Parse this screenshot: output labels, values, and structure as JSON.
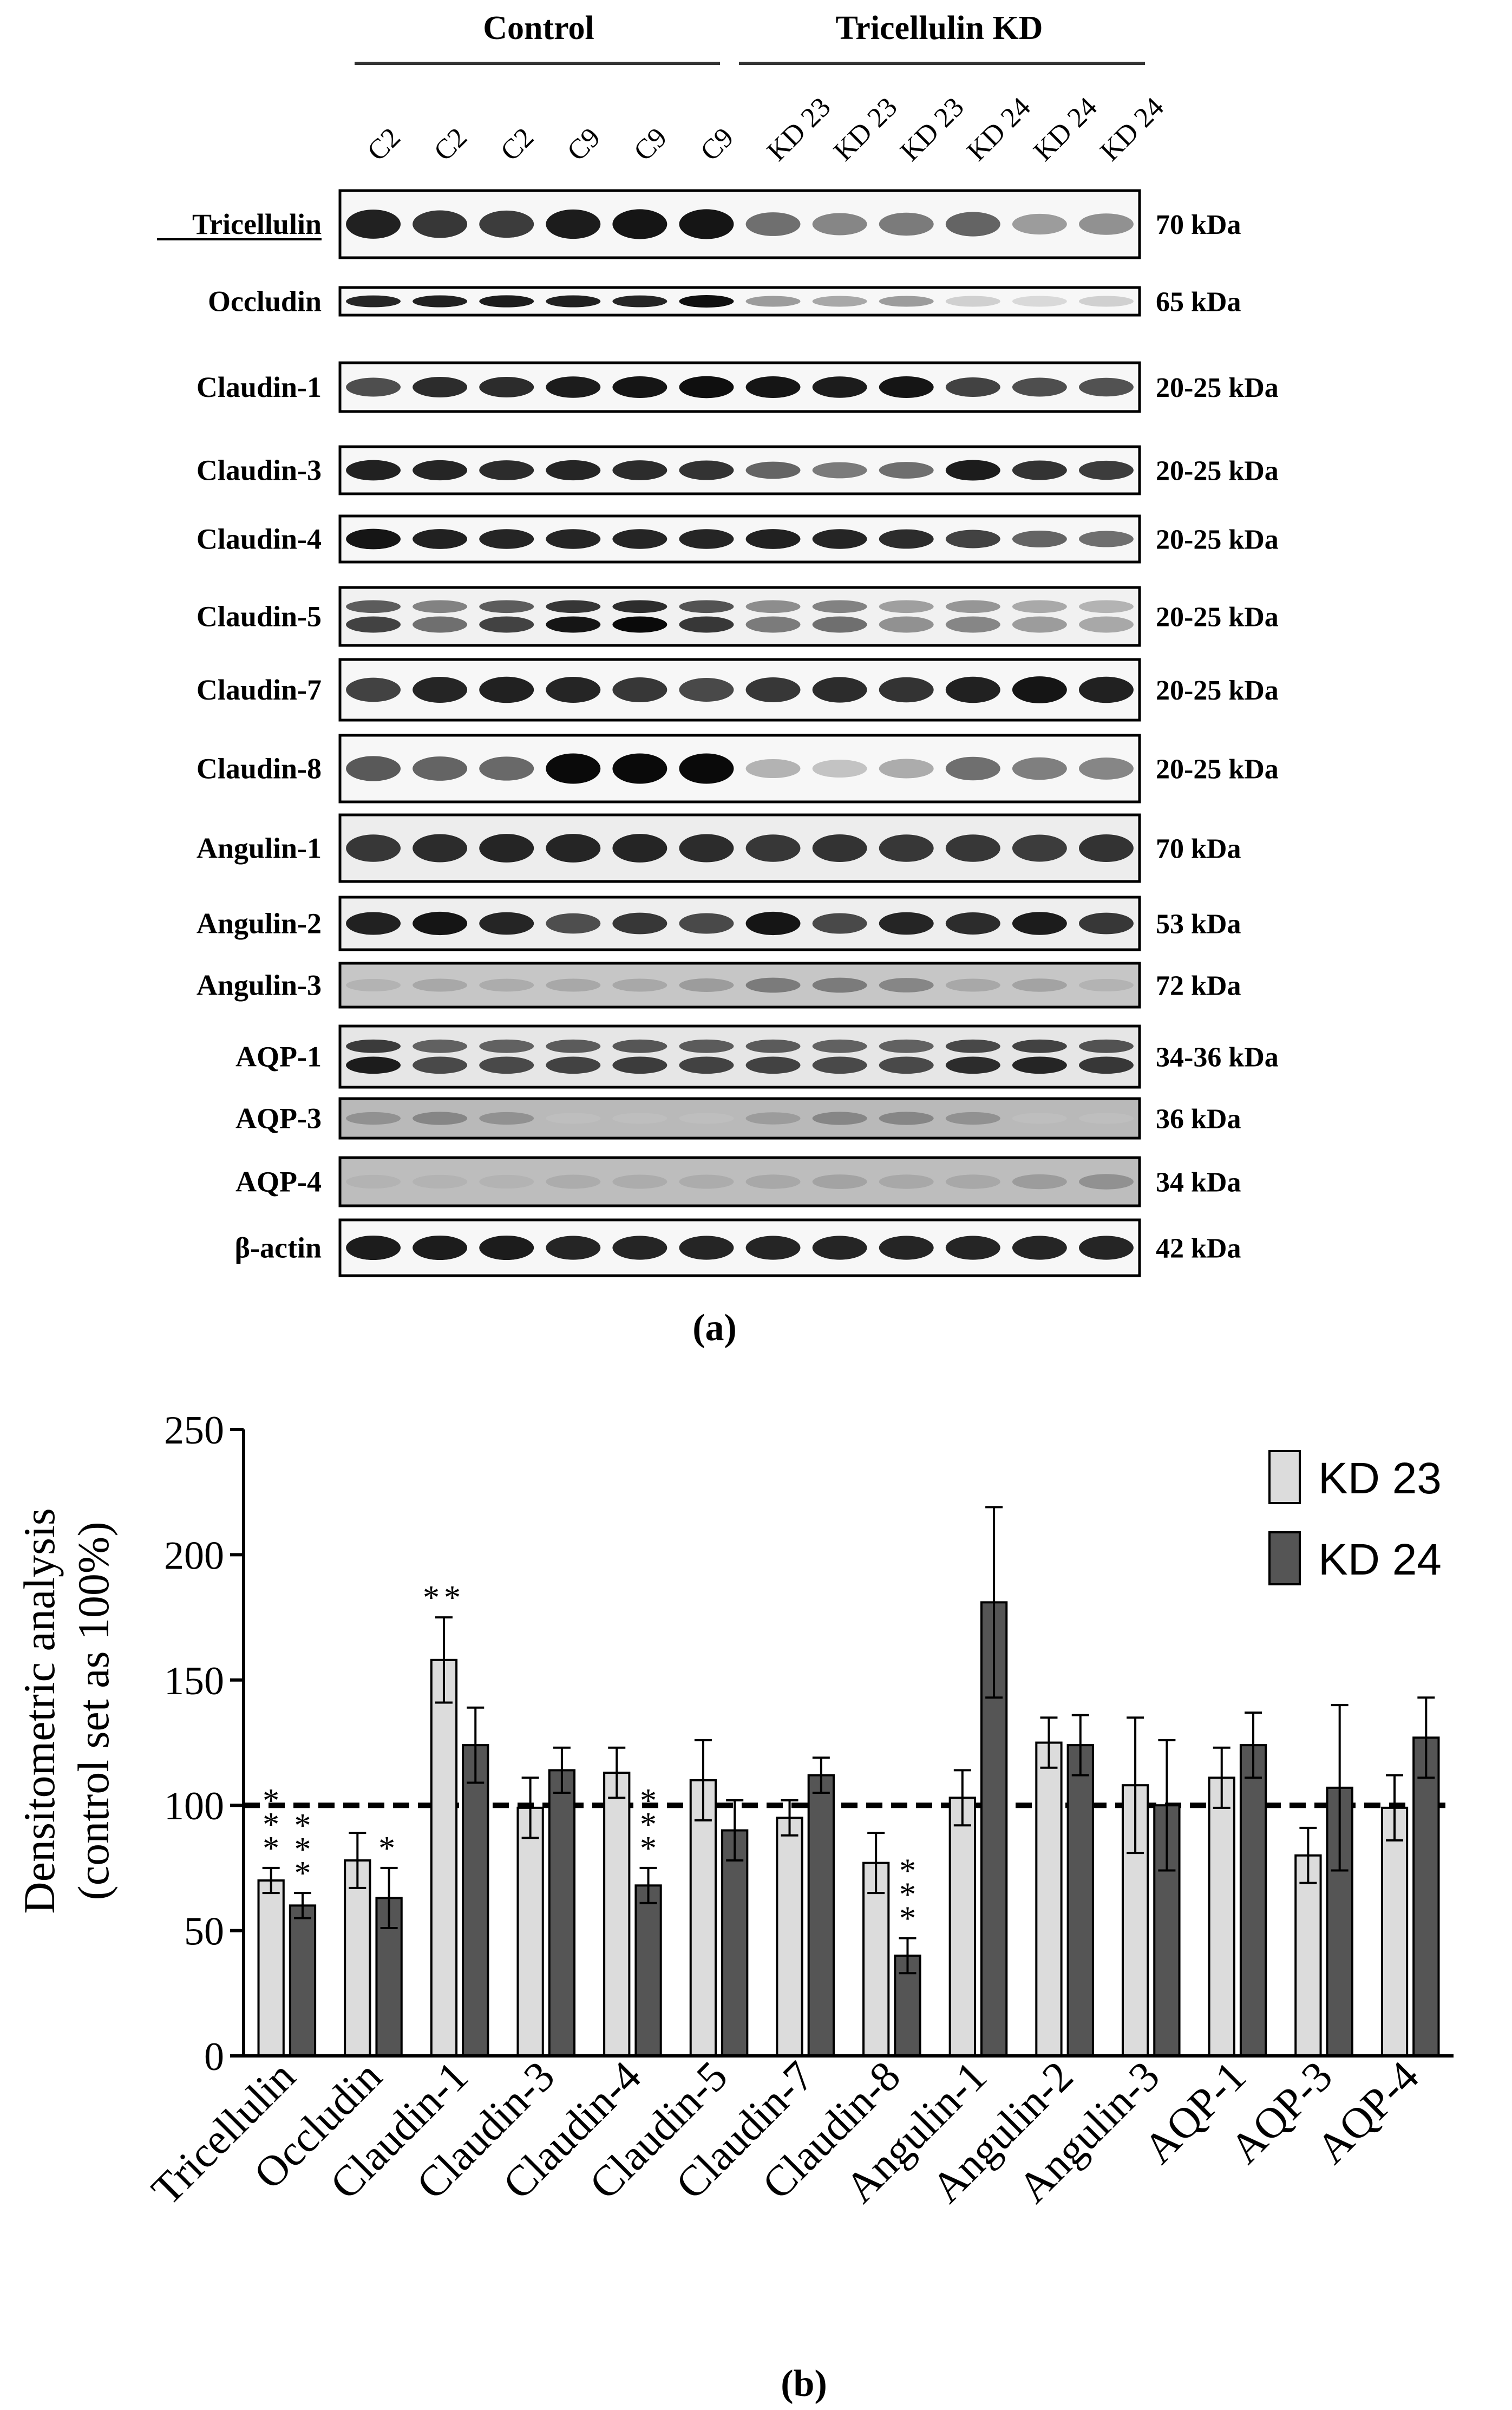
{
  "blot": {
    "group_control": "Control",
    "group_kd": "Tricellulin KD",
    "lanes": [
      "C2",
      "C2",
      "C2",
      "C9",
      "C9",
      "C9",
      "KD 23",
      "KD 23",
      "KD 23",
      "KD 24",
      "KD 24",
      "KD 24"
    ],
    "rows": [
      {
        "protein": "Tricellulin",
        "size": "70 kDa",
        "underline": true,
        "bg": "#f7f7f7",
        "intensity": [
          0.9,
          0.8,
          0.78,
          0.92,
          0.95,
          0.95,
          0.55,
          0.45,
          0.5,
          0.6,
          0.35,
          0.4
        ],
        "double": false
      },
      {
        "protein": "Occludin",
        "size": "65 kDa",
        "bg": "#f7f7f7",
        "intensity": [
          0.88,
          0.9,
          0.92,
          0.9,
          0.88,
          0.98,
          0.35,
          0.3,
          0.35,
          0.12,
          0.08,
          0.12
        ],
        "double": false
      },
      {
        "protein": "Claudin-1",
        "size": "20-25 kDa",
        "bg": "#f7f7f7",
        "intensity": [
          0.7,
          0.85,
          0.85,
          0.92,
          0.95,
          0.98,
          0.95,
          0.92,
          0.95,
          0.75,
          0.7,
          0.68
        ],
        "double": false
      },
      {
        "protein": "Claudin-3",
        "size": "20-25 kDa",
        "bg": "#f7f7f7",
        "intensity": [
          0.9,
          0.88,
          0.85,
          0.88,
          0.85,
          0.82,
          0.6,
          0.5,
          0.55,
          0.92,
          0.82,
          0.78
        ],
        "double": false
      },
      {
        "protein": "Claudin-4",
        "size": "20-25 kDa",
        "bg": "#f7f7f7",
        "intensity": [
          0.95,
          0.9,
          0.88,
          0.88,
          0.88,
          0.88,
          0.9,
          0.88,
          0.85,
          0.75,
          0.6,
          0.55
        ],
        "double": false
      },
      {
        "protein": "Claudin-5",
        "size": "20-25 kDa",
        "bg": "#f1f1f1",
        "intensity": [
          0.75,
          0.55,
          0.75,
          0.95,
          1.0,
          0.8,
          0.5,
          0.55,
          0.4,
          0.45,
          0.35,
          0.3
        ],
        "double": true
      },
      {
        "protein": "Claudin-7",
        "size": "20-25 kDa",
        "bg": "#f7f7f7",
        "intensity": [
          0.75,
          0.88,
          0.9,
          0.88,
          0.8,
          0.72,
          0.8,
          0.85,
          0.82,
          0.9,
          0.95,
          0.9
        ],
        "double": false
      },
      {
        "protein": "Claudin-8",
        "size": "20-25 kDa",
        "bg": "#f7f7f7",
        "intensity": [
          0.65,
          0.6,
          0.58,
          1.0,
          1.0,
          1.0,
          0.25,
          0.18,
          0.28,
          0.55,
          0.48,
          0.45
        ],
        "double": false
      },
      {
        "protein": "Angulin-1",
        "size": "70 kDa",
        "bg": "#ededed",
        "intensity": [
          0.8,
          0.85,
          0.88,
          0.88,
          0.88,
          0.85,
          0.8,
          0.82,
          0.8,
          0.8,
          0.78,
          0.82
        ],
        "double": false
      },
      {
        "protein": "Angulin-2",
        "size": "53 kDa",
        "bg": "#eeeeee",
        "intensity": [
          0.9,
          0.95,
          0.88,
          0.7,
          0.8,
          0.72,
          0.95,
          0.72,
          0.88,
          0.85,
          0.92,
          0.8
        ],
        "double": false
      },
      {
        "protein": "Angulin-3",
        "size": "72 kDa",
        "bg": "#c6c6c6",
        "intensity": [
          0.25,
          0.3,
          0.28,
          0.3,
          0.3,
          0.35,
          0.5,
          0.5,
          0.45,
          0.3,
          0.32,
          0.25
        ],
        "double": false
      },
      {
        "protein": "AQP-1",
        "size": "34-36 kDa",
        "bg": "#e6e6e6",
        "intensity": [
          0.92,
          0.72,
          0.72,
          0.75,
          0.78,
          0.75,
          0.75,
          0.72,
          0.72,
          0.85,
          0.88,
          0.8
        ],
        "double": true
      },
      {
        "protein": "AQP-3",
        "size": "36 kDa",
        "bg": "#b9b9b9",
        "intensity": [
          0.4,
          0.45,
          0.4,
          0.2,
          0.2,
          0.2,
          0.35,
          0.45,
          0.45,
          0.4,
          0.2,
          0.2
        ],
        "double": false
      },
      {
        "protein": "AQP-4",
        "size": "34 kDa",
        "bg": "#bdbdbd",
        "intensity": [
          0.25,
          0.25,
          0.25,
          0.28,
          0.28,
          0.28,
          0.3,
          0.32,
          0.3,
          0.3,
          0.35,
          0.4
        ],
        "double": false
      },
      {
        "protein": "β-actin",
        "size": "42 kDa",
        "bg": "#f7f7f7",
        "intensity": [
          0.92,
          0.92,
          0.92,
          0.88,
          0.88,
          0.88,
          0.88,
          0.88,
          0.88,
          0.88,
          0.88,
          0.88
        ],
        "double": false
      }
    ]
  },
  "panel_a_label": "(a)",
  "panel_b_label": "(b)",
  "chart_data": {
    "type": "bar",
    "title": "",
    "ylabel_line1": "Densitometric analysis",
    "ylabel_line2": "(control set as 100%)",
    "xlabel": "",
    "ylim": [
      0,
      250
    ],
    "yticks": [
      0,
      50,
      100,
      150,
      200,
      250
    ],
    "reference_line": 100,
    "categories": [
      "Tricellulin",
      "Occludin",
      "Claudin-1",
      "Claudin-3",
      "Claudin-4",
      "Claudin-5",
      "Claudin-7",
      "Claudin-8",
      "Angulin-1",
      "Angulin-2",
      "Angulin-3",
      "AQP-1",
      "AQP-3",
      "AQP-4"
    ],
    "series": [
      {
        "name": "KD 23",
        "color": "#dcdcdc",
        "values": [
          70,
          78,
          158,
          99,
          113,
          110,
          95,
          77,
          103,
          125,
          108,
          111,
          80,
          99
        ],
        "errors": [
          5,
          11,
          17,
          12,
          10,
          16,
          7,
          12,
          11,
          10,
          27,
          12,
          11,
          13
        ],
        "stars": [
          "***",
          "",
          "**",
          "",
          "",
          "",
          "",
          "",
          "",
          "",
          "",
          "",
          "",
          ""
        ]
      },
      {
        "name": "KD 24",
        "color": "#555555",
        "values": [
          60,
          63,
          124,
          114,
          68,
          90,
          112,
          40,
          181,
          124,
          100,
          124,
          107,
          127
        ],
        "errors": [
          5,
          12,
          15,
          9,
          7,
          12,
          7,
          7,
          38,
          12,
          26,
          13,
          33,
          16
        ],
        "stars": [
          "***",
          "*",
          "",
          "",
          "***",
          "",
          "",
          "***",
          "",
          "",
          "",
          "",
          "",
          ""
        ]
      }
    ]
  }
}
